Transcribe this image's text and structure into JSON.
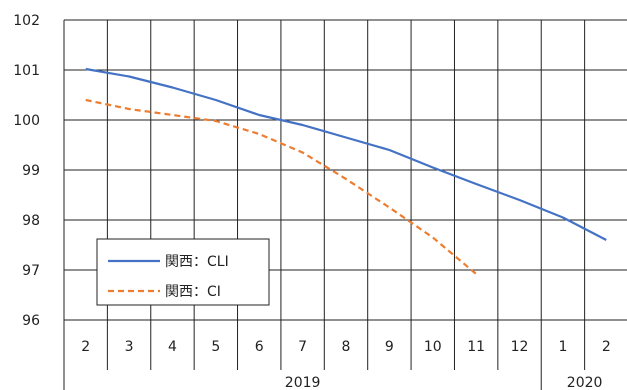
{
  "chart_data": {
    "type": "line",
    "title": "",
    "xlabel": "",
    "ylabel": "",
    "ylim": [
      96,
      102
    ],
    "yticks": [
      96,
      97,
      98,
      99,
      100,
      101,
      102
    ],
    "grid": true,
    "categories": [
      "2",
      "3",
      "4",
      "5",
      "6",
      "7",
      "8",
      "9",
      "10",
      "11",
      "12",
      "1",
      "2"
    ],
    "year_groups": [
      {
        "label": "2019",
        "span": 11
      },
      {
        "label": "2020",
        "span": 2
      }
    ],
    "series": [
      {
        "name": "関西：CLI",
        "color": "#4472C4",
        "dash": "solid",
        "values": [
          101.02,
          100.87,
          100.65,
          100.4,
          100.1,
          99.9,
          99.65,
          99.4,
          99.05,
          98.72,
          98.4,
          98.05,
          97.6
        ]
      },
      {
        "name": "関西：CI",
        "color": "#ED7D31",
        "dash": "dashed",
        "values": [
          100.4,
          100.22,
          100.1,
          99.98,
          99.72,
          99.35,
          98.82,
          98.25,
          97.65,
          96.92,
          null,
          null,
          null
        ]
      }
    ],
    "legend_position": "lower-left"
  }
}
